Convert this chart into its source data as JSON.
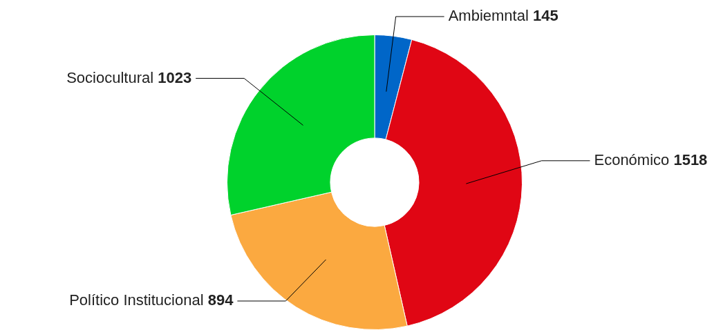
{
  "chart_data": {
    "type": "donut",
    "categories": [
      "Ambiemntal",
      "Económico",
      "Político Institucional",
      "Sociocultural"
    ],
    "values": [
      145,
      1518,
      894,
      1023
    ],
    "colors": [
      "#0066c8",
      "#e00614",
      "#fba940",
      "#00d22c"
    ],
    "data_labels": true,
    "legend": false
  }
}
